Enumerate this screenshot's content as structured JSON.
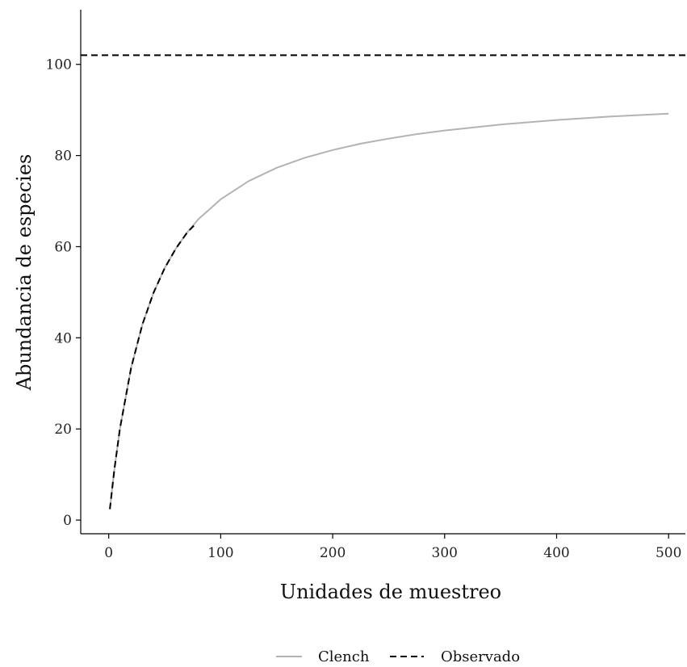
{
  "chart_data": {
    "type": "line",
    "title": "",
    "xlabel": "Unidades de muestreo",
    "ylabel": "Abundancia de especies",
    "xlim": [
      -25,
      515
    ],
    "ylim": [
      -3,
      112
    ],
    "x_ticks": [
      0,
      100,
      200,
      300,
      400,
      500
    ],
    "y_ticks": [
      0,
      20,
      40,
      60,
      80,
      100
    ],
    "grid": false,
    "legend_position": "bottom",
    "series": [
      {
        "name": "Clench",
        "style": "solid",
        "color": "#b3b3b3",
        "x": [
          1,
          5,
          10,
          20,
          30,
          40,
          50,
          60,
          70,
          80,
          100,
          125,
          150,
          175,
          200,
          225,
          250,
          275,
          300,
          350,
          400,
          450,
          500
        ],
        "y": [
          2.4,
          11,
          20,
          33.4,
          42.9,
          49.9,
          55.3,
          59.6,
          63.1,
          66,
          70.4,
          74.4,
          77.3,
          79.5,
          81.2,
          82.6,
          83.7,
          84.7,
          85.5,
          86.8,
          87.8,
          88.6,
          89.2
        ]
      },
      {
        "name": "Observado",
        "style": "dashed",
        "color": "#000000",
        "x": [
          1,
          5,
          10,
          20,
          30,
          40,
          50,
          60,
          70,
          76
        ],
        "y": [
          2.4,
          11,
          20,
          33.4,
          42.9,
          49.9,
          55.3,
          59.6,
          63.1,
          64.6
        ],
        "asymptote": 102
      }
    ]
  }
}
